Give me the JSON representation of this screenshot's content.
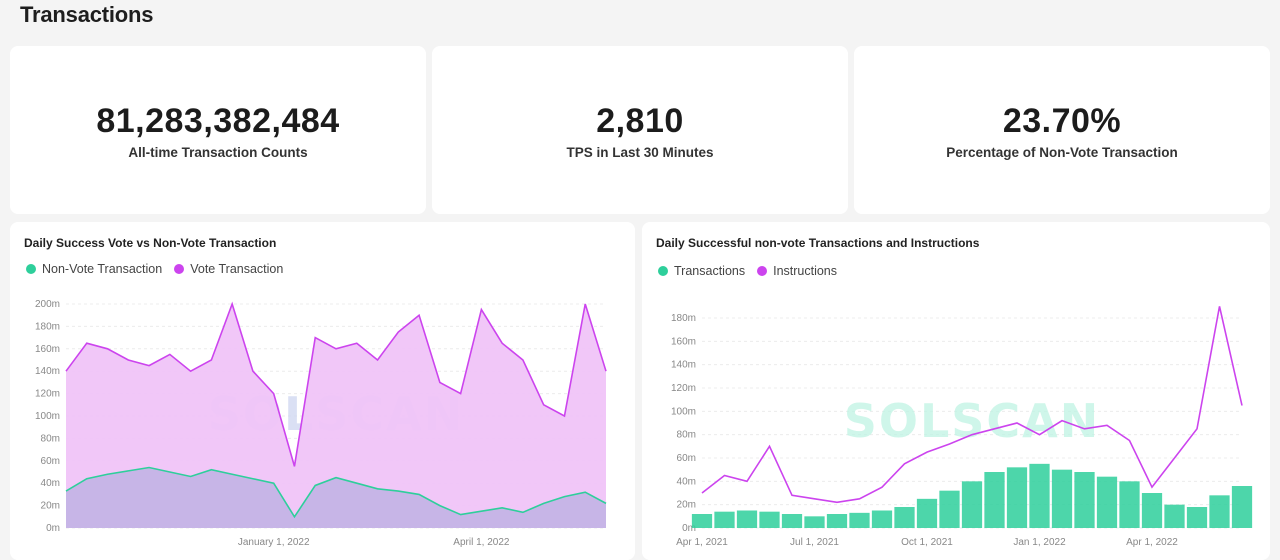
{
  "page_title": "Transactions",
  "stats": [
    {
      "value": "81,283,382,484",
      "label": "All-time Transaction Counts"
    },
    {
      "value": "2,810",
      "label": "TPS in Last 30 Minutes"
    },
    {
      "value": "23.70%",
      "label": "Percentage of Non-Vote Transaction"
    }
  ],
  "colors": {
    "green": "#2ecf9b",
    "purple": "#cc44ee",
    "purple_fill": "#f0c4f8",
    "overlap_fill": "#c4b4e6"
  },
  "watermark": "SOLSCAN",
  "chart_data": [
    {
      "type": "area",
      "title": "Daily Success Vote vs Non-Vote Transaction",
      "xlabel": "",
      "ylabel": "",
      "y_ticks": [
        "0m",
        "20m",
        "40m",
        "60m",
        "80m",
        "100m",
        "120m",
        "140m",
        "160m",
        "180m",
        "200m"
      ],
      "ylim": [
        0,
        200
      ],
      "x_ticks": [
        "January 1, 2022",
        "April 1, 2022"
      ],
      "x_tick_positions": [
        2.5,
        5.5
      ],
      "xlim": [
        -0.5,
        7.3
      ],
      "grid": true,
      "legend": "top-left",
      "series": [
        {
          "name": "Non-Vote Transaction",
          "color": "#2ecf9b",
          "fill": "#c4b4e6",
          "x": [
            -0.5,
            -0.2,
            0.1,
            0.4,
            0.7,
            1.0,
            1.3,
            1.6,
            1.9,
            2.2,
            2.5,
            2.8,
            3.1,
            3.4,
            3.7,
            4.0,
            4.3,
            4.6,
            4.9,
            5.2,
            5.5,
            5.8,
            6.1,
            6.4,
            6.7,
            7.0,
            7.3
          ],
          "values": [
            33,
            44,
            48,
            51,
            54,
            50,
            46,
            52,
            48,
            44,
            40,
            10,
            38,
            45,
            40,
            35,
            33,
            30,
            20,
            12,
            15,
            18,
            14,
            22,
            28,
            32,
            22
          ]
        },
        {
          "name": "Vote Transaction",
          "color": "#cc44ee",
          "fill": "#f0c4f8",
          "x": [
            -0.5,
            -0.2,
            0.1,
            0.4,
            0.7,
            1.0,
            1.3,
            1.6,
            1.9,
            2.2,
            2.5,
            2.8,
            3.1,
            3.4,
            3.7,
            4.0,
            4.3,
            4.6,
            4.9,
            5.2,
            5.5,
            5.8,
            6.1,
            6.4,
            6.7,
            7.0,
            7.3
          ],
          "values": [
            140,
            165,
            160,
            150,
            145,
            155,
            140,
            150,
            200,
            140,
            120,
            55,
            170,
            160,
            165,
            150,
            175,
            190,
            130,
            120,
            195,
            165,
            150,
            110,
            100,
            200,
            140
          ]
        }
      ]
    },
    {
      "type": "bar+line",
      "title": "Daily Successful non-vote Transactions and Instructions",
      "xlabel": "",
      "ylabel": "",
      "y_ticks": [
        "0m",
        "20m",
        "40m",
        "60m",
        "80m",
        "100m",
        "120m",
        "140m",
        "160m",
        "180m"
      ],
      "ylim": [
        0,
        180
      ],
      "x_ticks": [
        "Apr 1, 2021",
        "Jul 1, 2021",
        "Oct 1, 2021",
        "Jan 1, 2022",
        "Apr 1, 2022"
      ],
      "x_tick_positions": [
        0,
        1,
        2,
        3,
        4
      ],
      "xlim": [
        0,
        4.8
      ],
      "grid": true,
      "legend": "top-left",
      "series": [
        {
          "name": "Transactions",
          "color": "#2ecf9b",
          "x": [
            0,
            0.2,
            0.4,
            0.6,
            0.8,
            1.0,
            1.2,
            1.4,
            1.6,
            1.8,
            2.0,
            2.2,
            2.4,
            2.6,
            2.8,
            3.0,
            3.2,
            3.4,
            3.6,
            3.8,
            4.0,
            4.2,
            4.4,
            4.6,
            4.8
          ],
          "values": [
            12,
            14,
            15,
            14,
            12,
            10,
            12,
            13,
            15,
            18,
            25,
            32,
            40,
            48,
            52,
            55,
            50,
            48,
            44,
            40,
            30,
            20,
            18,
            28,
            36
          ]
        },
        {
          "name": "Instructions",
          "color": "#cc44ee",
          "x": [
            0,
            0.2,
            0.4,
            0.6,
            0.8,
            1.0,
            1.2,
            1.4,
            1.6,
            1.8,
            2.0,
            2.2,
            2.4,
            2.6,
            2.8,
            3.0,
            3.2,
            3.4,
            3.6,
            3.8,
            4.0,
            4.2,
            4.4,
            4.6,
            4.8
          ],
          "values": [
            30,
            45,
            40,
            70,
            28,
            25,
            22,
            25,
            35,
            55,
            65,
            72,
            80,
            85,
            90,
            80,
            92,
            85,
            88,
            75,
            35,
            60,
            85,
            190,
            105
          ]
        }
      ]
    }
  ]
}
